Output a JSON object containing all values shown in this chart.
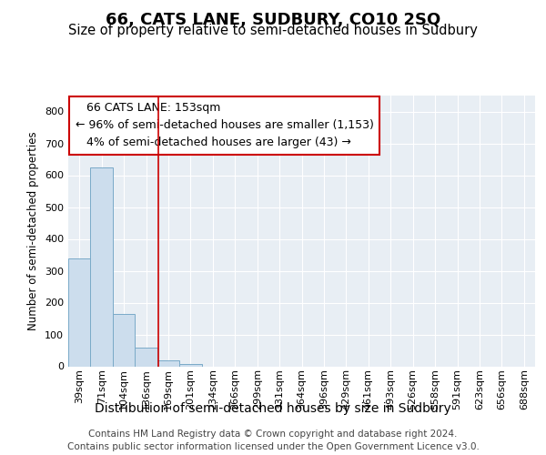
{
  "title": "66, CATS LANE, SUDBURY, CO10 2SQ",
  "subtitle": "Size of property relative to semi-detached houses in Sudbury",
  "xlabel": "Distribution of semi-detached houses by size in Sudbury",
  "ylabel": "Number of semi-detached properties",
  "categories": [
    "39sqm",
    "71sqm",
    "104sqm",
    "136sqm",
    "169sqm",
    "201sqm",
    "234sqm",
    "266sqm",
    "299sqm",
    "331sqm",
    "364sqm",
    "396sqm",
    "429sqm",
    "461sqm",
    "493sqm",
    "526sqm",
    "558sqm",
    "591sqm",
    "623sqm",
    "656sqm",
    "688sqm"
  ],
  "values": [
    340,
    625,
    163,
    60,
    18,
    8,
    0,
    0,
    0,
    0,
    0,
    0,
    0,
    0,
    0,
    0,
    0,
    0,
    0,
    0,
    0
  ],
  "bar_color": "#ccdded",
  "bar_edge_color": "#7aaac8",
  "vline_x": 3.55,
  "vline_color": "#cc0000",
  "annotation_text": "   66 CATS LANE: 153sqm\n← 96% of semi-detached houses are smaller (1,153)\n   4% of semi-detached houses are larger (43) →",
  "annotation_box_color": "#ffffff",
  "annotation_box_edge": "#cc0000",
  "ylim": [
    0,
    850
  ],
  "yticks": [
    0,
    100,
    200,
    300,
    400,
    500,
    600,
    700,
    800
  ],
  "footer1": "Contains HM Land Registry data © Crown copyright and database right 2024.",
  "footer2": "Contains public sector information licensed under the Open Government Licence v3.0.",
  "fig_bg_color": "#ffffff",
  "plot_bg_color": "#e8eef4",
  "grid_color": "#ffffff",
  "title_fontsize": 13,
  "subtitle_fontsize": 10.5,
  "xlabel_fontsize": 10,
  "ylabel_fontsize": 8.5,
  "tick_fontsize": 8,
  "annot_fontsize": 9,
  "footer_fontsize": 7.5
}
